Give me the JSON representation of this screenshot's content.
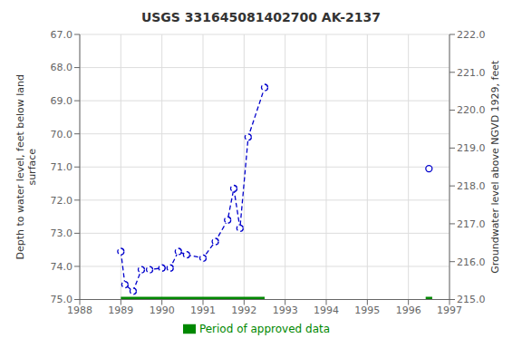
{
  "chart_data": {
    "type": "line",
    "title": "USGS 331645081402700 AK-2137",
    "ylabel": "Depth to water level, feet below land\nsurface",
    "y2label": "Groundwater level above NGVD 1929, feet",
    "xlim": [
      1988,
      1997
    ],
    "xticks": [
      1988,
      1989,
      1990,
      1991,
      1992,
      1993,
      1994,
      1995,
      1996,
      1997
    ],
    "ylim": [
      75.0,
      67.0
    ],
    "yticks": [
      {
        "value": 67.0,
        "label": "67.0"
      },
      {
        "value": 68.0,
        "label": "68.0"
      },
      {
        "value": 69.0,
        "label": "69.0"
      },
      {
        "value": 70.0,
        "label": "70.0"
      },
      {
        "value": 71.0,
        "label": "71.0"
      },
      {
        "value": 72.0,
        "label": "72.0"
      },
      {
        "value": 73.0,
        "label": "73.0"
      },
      {
        "value": 74.0,
        "label": "74.0"
      },
      {
        "value": 75.0,
        "label": "75.0"
      }
    ],
    "y2lim": [
      215.0,
      222.0
    ],
    "y2ticks": [
      {
        "value": 215.0,
        "label": "215.0"
      },
      {
        "value": 216.0,
        "label": "216.0"
      },
      {
        "value": 217.0,
        "label": "217.0"
      },
      {
        "value": 218.0,
        "label": "218.0"
      },
      {
        "value": 219.0,
        "label": "219.0"
      },
      {
        "value": 220.0,
        "label": "220.0"
      },
      {
        "value": 221.0,
        "label": "221.0"
      },
      {
        "value": 222.0,
        "label": "222.0"
      }
    ],
    "grid": true,
    "legend": "bottom",
    "series": [
      {
        "type": "line",
        "color": "#0000cc",
        "line_style": "dashed",
        "marker": "circle",
        "x": [
          1989.0,
          1989.1,
          1989.3,
          1989.5,
          1989.7,
          1990.0,
          1990.2,
          1990.4,
          1990.6,
          1991.0,
          1991.3,
          1991.6,
          1991.75,
          1991.9,
          1992.1,
          1992.5
        ],
        "values": [
          73.55,
          74.55,
          74.75,
          74.1,
          74.1,
          74.05,
          74.05,
          73.55,
          73.65,
          73.75,
          73.25,
          72.6,
          71.65,
          72.85,
          70.1,
          68.6
        ]
      },
      {
        "type": "scatter",
        "color": "#0000cc",
        "marker": "circle",
        "x": [
          1996.5
        ],
        "values": [
          71.05
        ]
      },
      {
        "type": "line",
        "name": "Period of approved data",
        "color": "#008800",
        "line_style": "solid",
        "x": [
          1989.0,
          1992.5
        ],
        "values": [
          75.0,
          75.0
        ]
      },
      {
        "type": "line",
        "color": "#008800",
        "line_style": "solid",
        "x": [
          1996.42,
          1996.58
        ],
        "values": [
          75.0,
          75.0
        ]
      }
    ]
  }
}
